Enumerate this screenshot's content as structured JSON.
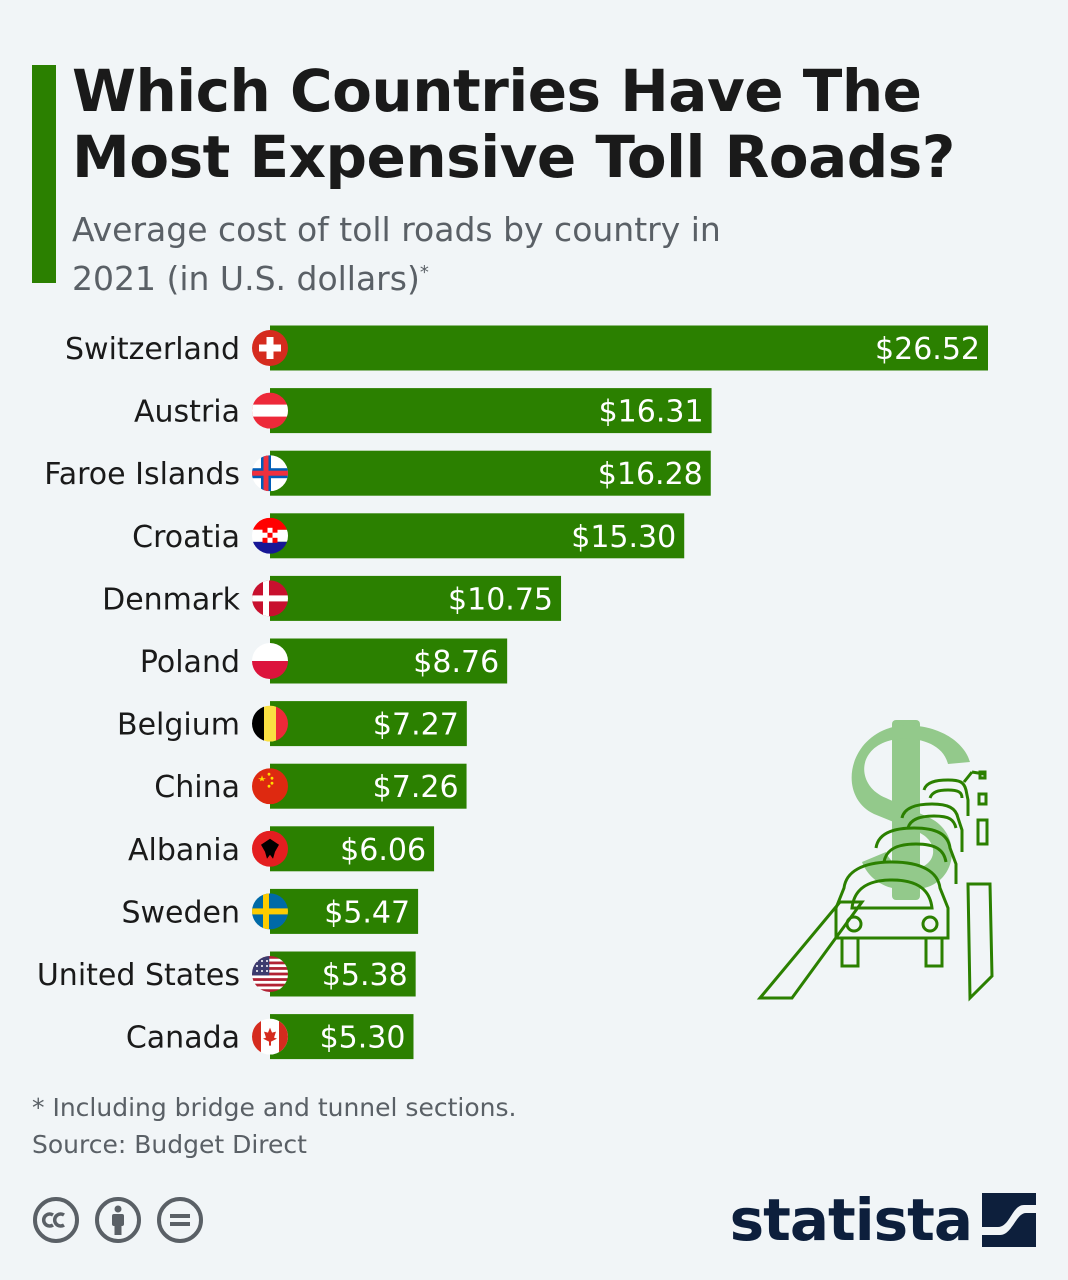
{
  "header": {
    "title": "Which Countries Have The Most Expensive Toll Roads?",
    "subtitle": "Average cost of toll roads by country in 2021 (in U.S. dollars)",
    "subtitle_mark": "*"
  },
  "chart_data": {
    "type": "bar",
    "orientation": "horizontal",
    "categories": [
      "Switzerland",
      "Austria",
      "Faroe Islands",
      "Croatia",
      "Denmark",
      "Poland",
      "Belgium",
      "China",
      "Albania",
      "Sweden",
      "United States",
      "Canada"
    ],
    "values": [
      26.52,
      16.31,
      16.28,
      15.3,
      10.75,
      8.76,
      7.27,
      7.26,
      6.06,
      5.47,
      5.38,
      5.3
    ],
    "value_labels": [
      "$26.52",
      "$16.31",
      "$16.28",
      "$15.30",
      "$10.75",
      "$8.76",
      "$7.27",
      "$7.26",
      "$6.06",
      "$5.47",
      "$5.38",
      "$5.30"
    ],
    "flag_icons": [
      "switzerland-flag-icon",
      "austria-flag-icon",
      "faroe-islands-flag-icon",
      "croatia-flag-icon",
      "denmark-flag-icon",
      "poland-flag-icon",
      "belgium-flag-icon",
      "china-flag-icon",
      "albania-flag-icon",
      "sweden-flag-icon",
      "united-states-flag-icon",
      "canada-flag-icon"
    ],
    "xlim": [
      0,
      26.52
    ],
    "title": "",
    "xlabel": "",
    "ylabel": "",
    "grid": false,
    "legend": "none"
  },
  "footer": {
    "footnote": "* Including bridge and tunnel sections.",
    "source": "Source: Budget Direct",
    "brand": "statista"
  },
  "colors": {
    "bar": "#2b8000",
    "accent": "#2b8000",
    "illustration": "#2b8000",
    "dollar": "#93c98b",
    "brand": "#0d1f3c",
    "muted": "#5a6066",
    "background": "#f1f5f7"
  },
  "icons": {
    "cc": "creative-commons-icon",
    "by": "attribution-icon",
    "nd": "no-derivatives-icon",
    "illustration": "toll-road-cars-illustration",
    "logo_mark": "statista-logo-icon"
  }
}
